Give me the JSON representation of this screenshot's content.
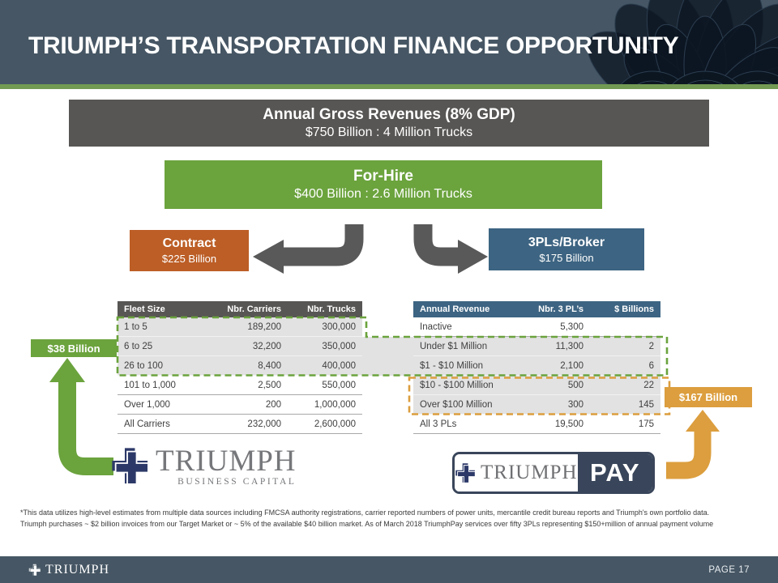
{
  "colors": {
    "slate": "#465664",
    "accent-line": "#739a53",
    "green": "#6ba33d",
    "orange": "#dc9e3e",
    "rust": "#bc5e26",
    "steel-blue": "#3d6482",
    "dark-gray": "#585654"
  },
  "header": {
    "title": "TRIUMPH’S TRANSPORTATION FINANCE OPPORTUNITY"
  },
  "boxes": {
    "annual": {
      "title": "Annual Gross Revenues (8% GDP)",
      "subtitle": "$750 Billion : 4 Million Trucks"
    },
    "for_hire": {
      "title": "For-Hire",
      "subtitle": "$400 Billion : 2.6 Million Trucks"
    },
    "contract": {
      "title": "Contract",
      "subtitle": "$225 Billion"
    },
    "brokers": {
      "title": "3PLs/Broker",
      "subtitle": "$175 Billion"
    }
  },
  "callouts": {
    "left_label": "$38 Billion",
    "right_label": "$167 Billion"
  },
  "left_table": {
    "headers": [
      "Fleet Size",
      "Nbr. Carriers",
      "Nbr. Trucks"
    ],
    "rows": [
      {
        "cells": [
          "1 to 5",
          "189,200",
          "300,000"
        ],
        "hl": "green"
      },
      {
        "cells": [
          "6 to 25",
          "32,200",
          "350,000"
        ],
        "hl": "green"
      },
      {
        "cells": [
          "26 to 100",
          "8,400",
          "400,000"
        ],
        "hl": "green"
      },
      {
        "cells": [
          "101 to 1,000",
          "2,500",
          "550,000"
        ],
        "hl": null
      },
      {
        "cells": [
          "Over 1,000",
          "200",
          "1,000,000"
        ],
        "hl": null
      },
      {
        "cells": [
          "All Carriers",
          "232,000",
          "2,600,000"
        ],
        "hl": null
      }
    ]
  },
  "right_table": {
    "headers": [
      "Annual Revenue",
      "Nbr. 3 PL’s",
      "$ Billions"
    ],
    "rows": [
      {
        "cells": [
          "Inactive",
          "5,300",
          ""
        ],
        "hl": null
      },
      {
        "cells": [
          "Under $1 Million",
          "11,300",
          "2"
        ],
        "hl": "green"
      },
      {
        "cells": [
          "$1 - $10 Million",
          "2,100",
          "6"
        ],
        "hl": "green"
      },
      {
        "cells": [
          "$10 - $100 Million",
          "500",
          "22"
        ],
        "hl": "orange"
      },
      {
        "cells": [
          "Over $100 Million",
          "300",
          "145"
        ],
        "hl": "orange"
      },
      {
        "cells": [
          "All 3 PLs",
          "19,500",
          "175"
        ],
        "hl": null
      }
    ]
  },
  "logos": {
    "business_capital": {
      "name": "TRIUMPH",
      "sub": "BUSINESS CAPITAL"
    },
    "pay": {
      "name": "TRIUMPH",
      "badge": "PAY"
    },
    "footer_brand": "TRIUMPH"
  },
  "footnotes": [
    "*This data utilizes high-level estimates from multiple data sources including FMCSA authority registrations, carrier reported numbers of power units, mercantile credit bureau reports and Triumph's own portfolio data.",
    "Triumph purchases ~ $2 billion invoices from our Target Market or ~ 5% of the available $40 billion market. As of March 2018 TriumphPay services over fifty 3PLs representing $150+million of annual payment volume"
  ],
  "footer": {
    "page_label": "PAGE 17"
  }
}
